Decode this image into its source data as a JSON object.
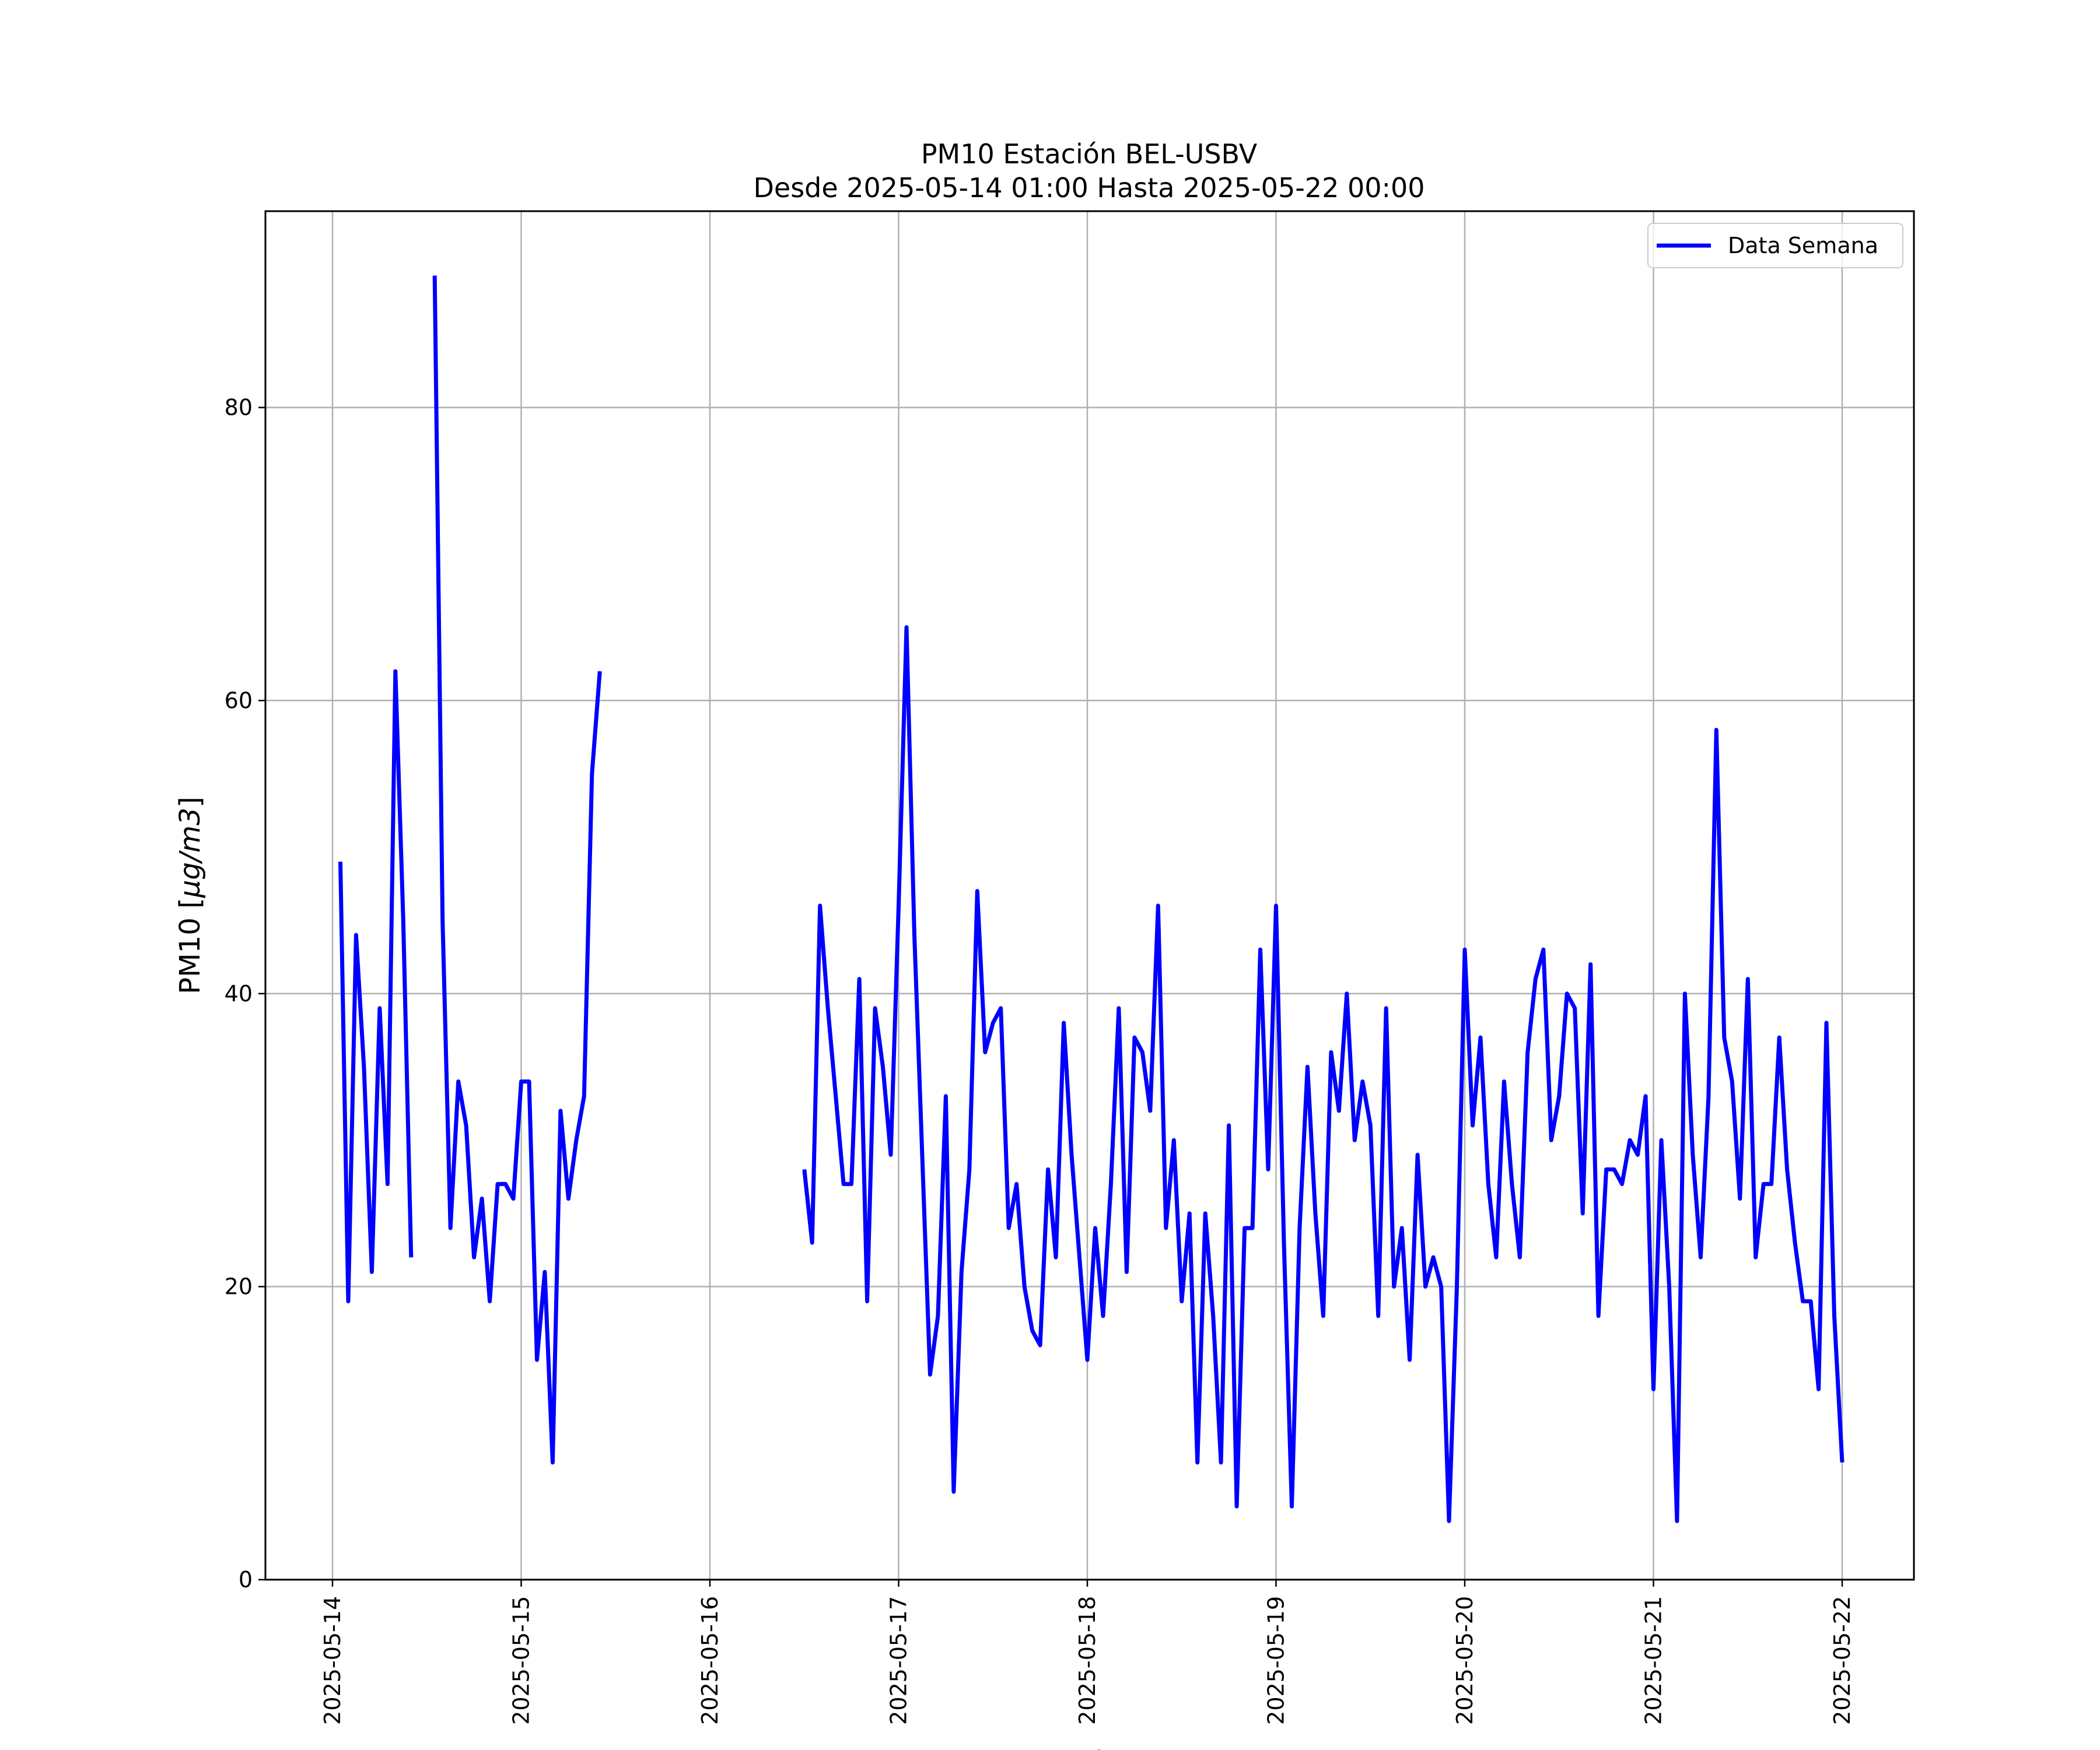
{
  "chart_data": {
    "type": "line",
    "title": "PM10 Estación BEL-USBV",
    "subtitle": "Desde 2025-05-14 01:00 Hasta 2025-05-22 00:00",
    "xlabel": "Fecha",
    "ylabel_text": "PM10 [",
    "ylabel_unit": "μg/m3",
    "ylabel_close": "]",
    "x_start": "2025-05-14",
    "x_end": "2025-05-22",
    "xticks": [
      "2025-05-14",
      "2025-05-15",
      "2025-05-16",
      "2025-05-17",
      "2025-05-18",
      "2025-05-19",
      "2025-05-20",
      "2025-05-21",
      "2025-05-22"
    ],
    "ylim": [
      0,
      93.4
    ],
    "yticks": [
      0,
      20,
      40,
      60,
      80
    ],
    "grid": true,
    "legend_position": "top-right",
    "colors": {
      "series": "#0000ff",
      "grid": "#b0b0b0",
      "axes": "#000000"
    },
    "series": [
      {
        "name": "Data Semana",
        "color": "#0000ff",
        "segments": [
          [
            [
              "2025-05-14 01:00",
              49
            ],
            [
              "2025-05-14 02:00",
              19
            ],
            [
              "2025-05-14 03:00",
              44
            ],
            [
              "2025-05-14 04:00",
              35
            ],
            [
              "2025-05-14 05:00",
              21
            ],
            [
              "2025-05-14 06:00",
              39
            ],
            [
              "2025-05-14 07:00",
              27
            ],
            [
              "2025-05-14 08:00",
              62
            ],
            [
              "2025-05-14 09:00",
              45
            ],
            [
              "2025-05-14 10:00",
              22
            ]
          ],
          [
            [
              "2025-05-14 13:00",
              89
            ],
            [
              "2025-05-14 14:00",
              45
            ],
            [
              "2025-05-14 15:00",
              24
            ],
            [
              "2025-05-14 16:00",
              34
            ],
            [
              "2025-05-14 17:00",
              31
            ],
            [
              "2025-05-14 18:00",
              22
            ],
            [
              "2025-05-14 19:00",
              26
            ],
            [
              "2025-05-14 20:00",
              19
            ],
            [
              "2025-05-14 21:00",
              27
            ],
            [
              "2025-05-14 22:00",
              27
            ],
            [
              "2025-05-14 23:00",
              26
            ],
            [
              "2025-05-15 00:00",
              34
            ],
            [
              "2025-05-15 01:00",
              34
            ],
            [
              "2025-05-15 02:00",
              15
            ],
            [
              "2025-05-15 03:00",
              21
            ],
            [
              "2025-05-15 04:00",
              8
            ],
            [
              "2025-05-15 05:00",
              32
            ],
            [
              "2025-05-15 06:00",
              26
            ],
            [
              "2025-05-15 07:00",
              30
            ],
            [
              "2025-05-15 08:00",
              33
            ],
            [
              "2025-05-15 09:00",
              55
            ],
            [
              "2025-05-15 10:00",
              62
            ]
          ],
          [
            [
              "2025-05-16 12:00",
              28
            ],
            [
              "2025-05-16 13:00",
              23
            ],
            [
              "2025-05-16 14:00",
              46
            ],
            [
              "2025-05-16 15:00",
              39
            ],
            [
              "2025-05-16 16:00",
              33
            ],
            [
              "2025-05-16 17:00",
              27
            ],
            [
              "2025-05-16 18:00",
              27
            ],
            [
              "2025-05-16 19:00",
              41
            ],
            [
              "2025-05-16 20:00",
              19
            ],
            [
              "2025-05-16 21:00",
              39
            ],
            [
              "2025-05-16 22:00",
              35
            ],
            [
              "2025-05-16 23:00",
              29
            ],
            [
              "2025-05-17 00:00",
              46
            ],
            [
              "2025-05-17 01:00",
              65
            ],
            [
              "2025-05-17 02:00",
              44
            ],
            [
              "2025-05-17 03:00",
              29
            ],
            [
              "2025-05-17 04:00",
              14
            ],
            [
              "2025-05-17 05:00",
              18
            ],
            [
              "2025-05-17 06:00",
              33
            ],
            [
              "2025-05-17 07:00",
              6
            ],
            [
              "2025-05-17 08:00",
              21
            ],
            [
              "2025-05-17 09:00",
              28
            ],
            [
              "2025-05-17 10:00",
              47
            ],
            [
              "2025-05-17 11:00",
              36
            ],
            [
              "2025-05-17 12:00",
              38
            ],
            [
              "2025-05-17 13:00",
              39
            ],
            [
              "2025-05-17 14:00",
              24
            ],
            [
              "2025-05-17 15:00",
              27
            ],
            [
              "2025-05-17 16:00",
              20
            ],
            [
              "2025-05-17 17:00",
              17
            ],
            [
              "2025-05-17 18:00",
              16
            ],
            [
              "2025-05-17 19:00",
              28
            ],
            [
              "2025-05-17 20:00",
              22
            ],
            [
              "2025-05-17 21:00",
              38
            ],
            [
              "2025-05-17 22:00",
              29
            ],
            [
              "2025-05-17 23:00",
              22
            ],
            [
              "2025-05-18 00:00",
              15
            ],
            [
              "2025-05-18 01:00",
              24
            ],
            [
              "2025-05-18 02:00",
              18
            ],
            [
              "2025-05-18 03:00",
              27
            ],
            [
              "2025-05-18 04:00",
              39
            ],
            [
              "2025-05-18 05:00",
              21
            ],
            [
              "2025-05-18 06:00",
              37
            ],
            [
              "2025-05-18 07:00",
              36
            ],
            [
              "2025-05-18 08:00",
              32
            ],
            [
              "2025-05-18 09:00",
              46
            ],
            [
              "2025-05-18 10:00",
              24
            ],
            [
              "2025-05-18 11:00",
              30
            ],
            [
              "2025-05-18 12:00",
              19
            ],
            [
              "2025-05-18 13:00",
              25
            ],
            [
              "2025-05-18 14:00",
              8
            ],
            [
              "2025-05-18 15:00",
              25
            ],
            [
              "2025-05-18 16:00",
              18
            ],
            [
              "2025-05-18 17:00",
              8
            ],
            [
              "2025-05-18 18:00",
              31
            ],
            [
              "2025-05-18 19:00",
              5
            ],
            [
              "2025-05-18 20:00",
              24
            ],
            [
              "2025-05-18 21:00",
              24
            ],
            [
              "2025-05-18 22:00",
              43
            ],
            [
              "2025-05-18 23:00",
              28
            ],
            [
              "2025-05-19 00:00",
              46
            ],
            [
              "2025-05-19 01:00",
              23
            ],
            [
              "2025-05-19 02:00",
              5
            ],
            [
              "2025-05-19 03:00",
              24
            ],
            [
              "2025-05-19 04:00",
              35
            ],
            [
              "2025-05-19 05:00",
              25
            ],
            [
              "2025-05-19 06:00",
              18
            ],
            [
              "2025-05-19 07:00",
              36
            ],
            [
              "2025-05-19 08:00",
              32
            ],
            [
              "2025-05-19 09:00",
              40
            ],
            [
              "2025-05-19 10:00",
              30
            ],
            [
              "2025-05-19 11:00",
              34
            ],
            [
              "2025-05-19 12:00",
              31
            ],
            [
              "2025-05-19 13:00",
              18
            ],
            [
              "2025-05-19 14:00",
              39
            ],
            [
              "2025-05-19 15:00",
              20
            ],
            [
              "2025-05-19 16:00",
              24
            ],
            [
              "2025-05-19 17:00",
              15
            ],
            [
              "2025-05-19 18:00",
              29
            ],
            [
              "2025-05-19 19:00",
              20
            ],
            [
              "2025-05-19 20:00",
              22
            ],
            [
              "2025-05-19 21:00",
              20
            ],
            [
              "2025-05-19 22:00",
              4
            ],
            [
              "2025-05-19 23:00",
              20
            ],
            [
              "2025-05-20 00:00",
              43
            ],
            [
              "2025-05-20 01:00",
              31
            ],
            [
              "2025-05-20 02:00",
              37
            ],
            [
              "2025-05-20 03:00",
              27
            ],
            [
              "2025-05-20 04:00",
              22
            ],
            [
              "2025-05-20 05:00",
              34
            ],
            [
              "2025-05-20 06:00",
              27
            ],
            [
              "2025-05-20 07:00",
              22
            ],
            [
              "2025-05-20 08:00",
              36
            ],
            [
              "2025-05-20 09:00",
              41
            ],
            [
              "2025-05-20 10:00",
              43
            ],
            [
              "2025-05-20 11:00",
              30
            ],
            [
              "2025-05-20 12:00",
              33
            ],
            [
              "2025-05-20 13:00",
              40
            ],
            [
              "2025-05-20 14:00",
              39
            ],
            [
              "2025-05-20 15:00",
              25
            ],
            [
              "2025-05-20 16:00",
              42
            ],
            [
              "2025-05-20 17:00",
              18
            ],
            [
              "2025-05-20 18:00",
              28
            ],
            [
              "2025-05-20 19:00",
              28
            ],
            [
              "2025-05-20 20:00",
              27
            ],
            [
              "2025-05-20 21:00",
              30
            ],
            [
              "2025-05-20 22:00",
              29
            ],
            [
              "2025-05-20 23:00",
              33
            ],
            [
              "2025-05-21 00:00",
              13
            ],
            [
              "2025-05-21 01:00",
              30
            ],
            [
              "2025-05-21 02:00",
              20
            ],
            [
              "2025-05-21 03:00",
              4
            ],
            [
              "2025-05-21 04:00",
              40
            ],
            [
              "2025-05-21 05:00",
              29
            ],
            [
              "2025-05-21 06:00",
              22
            ],
            [
              "2025-05-21 07:00",
              33
            ],
            [
              "2025-05-21 08:00",
              58
            ],
            [
              "2025-05-21 09:00",
              37
            ],
            [
              "2025-05-21 10:00",
              34
            ],
            [
              "2025-05-21 11:00",
              26
            ],
            [
              "2025-05-21 12:00",
              41
            ],
            [
              "2025-05-21 13:00",
              22
            ],
            [
              "2025-05-21 14:00",
              27
            ],
            [
              "2025-05-21 15:00",
              27
            ],
            [
              "2025-05-21 16:00",
              37
            ],
            [
              "2025-05-21 17:00",
              28
            ],
            [
              "2025-05-21 18:00",
              23
            ],
            [
              "2025-05-21 19:00",
              19
            ],
            [
              "2025-05-21 20:00",
              19
            ],
            [
              "2025-05-21 21:00",
              13
            ],
            [
              "2025-05-21 22:00",
              38
            ],
            [
              "2025-05-21 23:00",
              18
            ],
            [
              "2025-05-22 00:00",
              8
            ]
          ]
        ]
      }
    ]
  }
}
